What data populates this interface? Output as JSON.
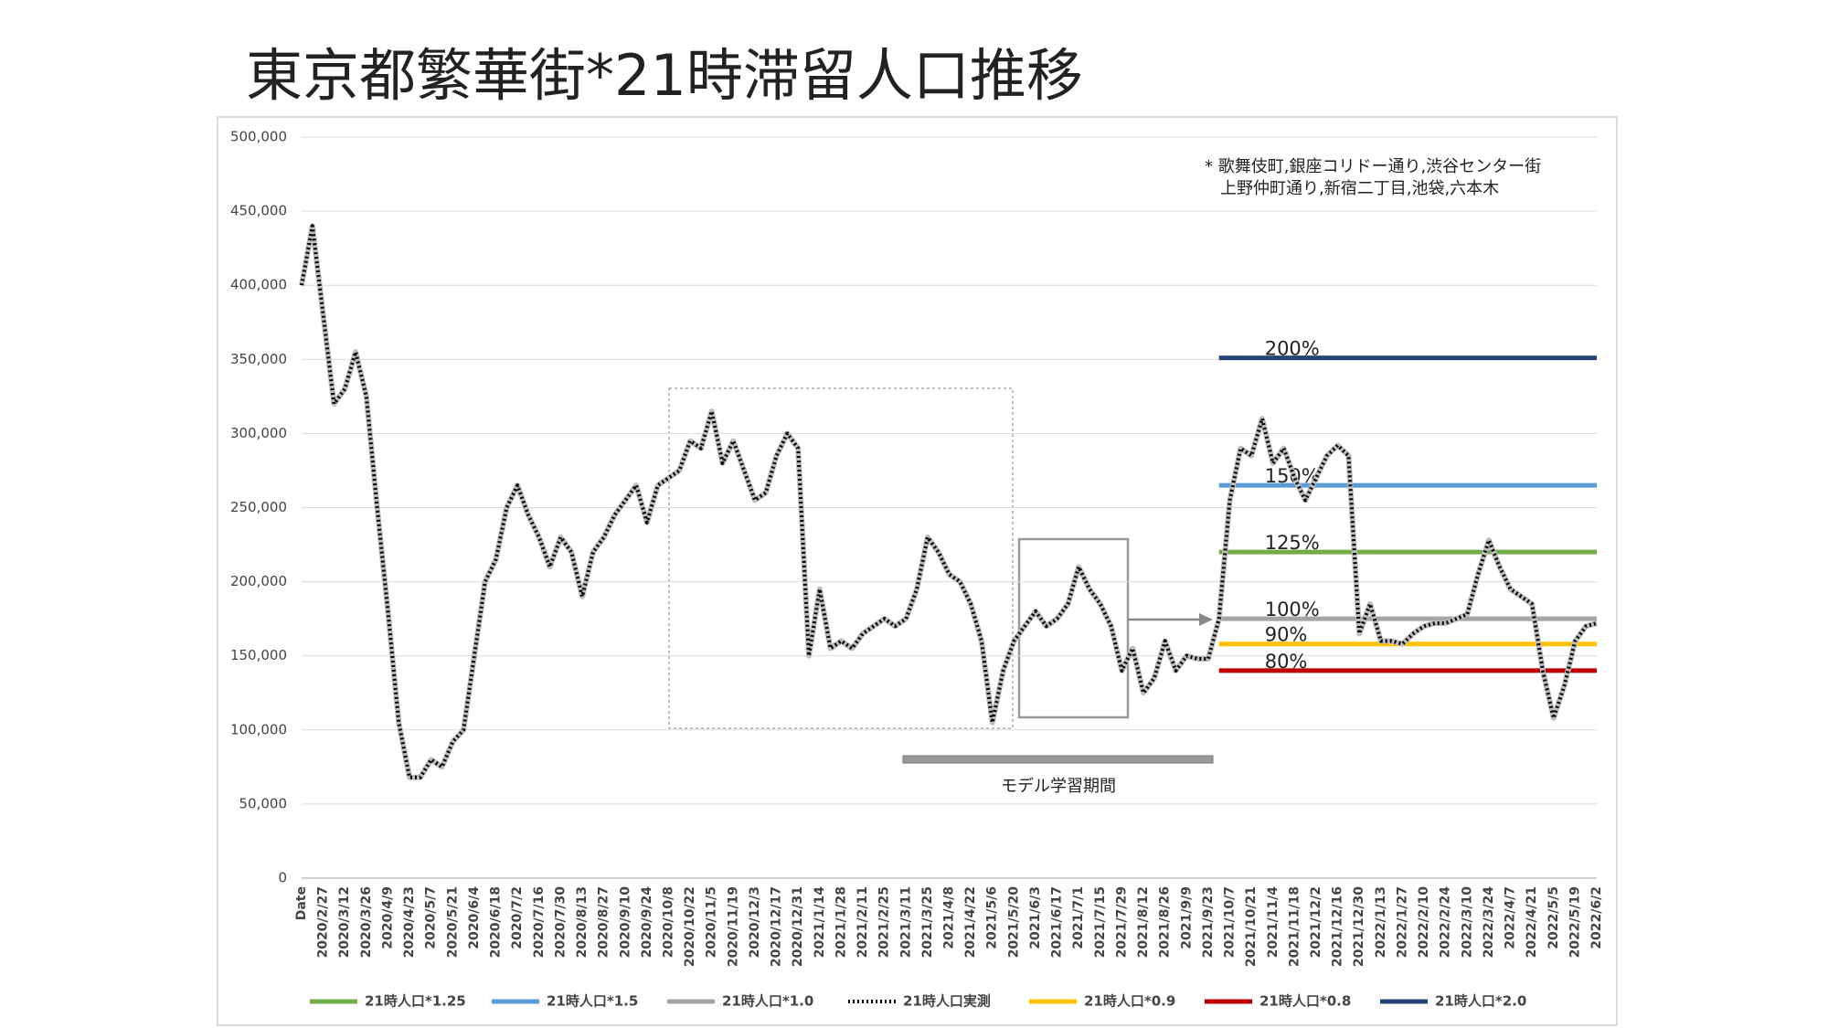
{
  "chart_data": {
    "type": "line",
    "title": "東京都繁華街*21時滞留人口推移",
    "note": [
      "* 歌舞伎町,銀座コリドー通り,渋谷センター街",
      "上野仲町通り,新宿二丁目,池袋,六本木"
    ],
    "annotation": "モデル学習期間",
    "categories": [
      "Date",
      null,
      "2020/2/27",
      null,
      "2020/3/12",
      null,
      "2020/3/26",
      null,
      "2020/4/9",
      null,
      "2020/4/23",
      null,
      "2020/5/7",
      null,
      "2020/5/21",
      null,
      "2020/6/4",
      null,
      "2020/6/18",
      null,
      "2020/7/2",
      null,
      "2020/7/16",
      null,
      "2020/7/30",
      null,
      "2020/8/13",
      null,
      "2020/8/27",
      null,
      "2020/9/10",
      null,
      "2020/9/24",
      null,
      "2020/10/8",
      null,
      "2020/10/22",
      null,
      "2020/11/5",
      null,
      "2020/11/19",
      null,
      "2020/12/3",
      null,
      "2020/12/17",
      null,
      "2020/12/31",
      null,
      "2021/1/14",
      null,
      "2021/1/28",
      null,
      "2021/2/11",
      null,
      "2021/2/25",
      null,
      "2021/3/11",
      null,
      "2021/3/25",
      null,
      "2021/4/8",
      null,
      "2021/4/22",
      null,
      "2021/5/6",
      null,
      "2021/5/20",
      null,
      "2021/6/3",
      null,
      "2021/6/17",
      null,
      "2021/7/1",
      null,
      "2021/7/15",
      null,
      "2021/7/29",
      null,
      "2021/8/12",
      null,
      "2021/8/26",
      null,
      "2021/9/9",
      null,
      "2021/9/23",
      null,
      "2021/10/7",
      null,
      "2021/10/21",
      null,
      "2021/11/4",
      null,
      "2021/11/18",
      null,
      "2021/12/2",
      null,
      "2021/12/16",
      null,
      "2021/12/30",
      null,
      "2022/1/13",
      null,
      "2022/1/27",
      null,
      "2022/2/10",
      null,
      "2022/2/24",
      null,
      "2022/3/10",
      null,
      "2022/3/24",
      null,
      "2022/4/7",
      null,
      "2022/4/21",
      null,
      "2022/5/5",
      null,
      "2022/5/19",
      null,
      "2022/6/2"
    ],
    "ylim": [
      0,
      500000
    ],
    "yticks": [
      0,
      {
        "value": 50000,
        "label": "50,000"
      },
      {
        "value": 100000,
        "label": "100,000"
      },
      {
        "value": 150000,
        "label": "150,000"
      },
      {
        "value": 200000,
        "label": "200,000"
      },
      {
        "value": 250000,
        "label": "250,000"
      },
      {
        "value": 300000,
        "label": "300,000"
      },
      {
        "value": 350000,
        "label": "350,000"
      },
      {
        "value": 400000,
        "label": "400,000"
      },
      {
        "value": 450000,
        "label": "450,000"
      },
      {
        "value": 500000,
        "label": "500,000"
      }
    ],
    "grid": true,
    "legend": "bottom",
    "series": [
      {
        "name": "21時人口*1.25",
        "color": "#70ad47",
        "annotation": "125%",
        "values": [
          null,
          null,
          null,
          null,
          null,
          null,
          null,
          null,
          null,
          null,
          null,
          null,
          null,
          null,
          null,
          null,
          null,
          null,
          null,
          null,
          null,
          null,
          null,
          null,
          null,
          null,
          null,
          null,
          null,
          null,
          null,
          null,
          null,
          null,
          null,
          null,
          null,
          null,
          null,
          null,
          null,
          null,
          null,
          null,
          null,
          null,
          null,
          null,
          null,
          null,
          null,
          null,
          null,
          null,
          null,
          null,
          null,
          null,
          null,
          null,
          null,
          null,
          null,
          null,
          null,
          null,
          null,
          null,
          null,
          null,
          null,
          null,
          null,
          null,
          null,
          null,
          null,
          null,
          null,
          null,
          null,
          null,
          null,
          null,
          null,
          220000,
          220000,
          220000,
          220000,
          220000,
          220000,
          220000,
          220000,
          220000,
          220000,
          220000,
          220000,
          220000,
          220000,
          220000,
          220000,
          220000,
          220000,
          220000,
          220000,
          220000,
          220000,
          220000,
          220000,
          220000,
          220000,
          220000,
          220000,
          220000,
          220000,
          220000,
          220000,
          220000,
          220000,
          220000,
          220000
        ]
      },
      {
        "name": "21時人口*1.5",
        "color": "#5b9bd5",
        "annotation": "150%",
        "values": [
          null,
          null,
          null,
          null,
          null,
          null,
          null,
          null,
          null,
          null,
          null,
          null,
          null,
          null,
          null,
          null,
          null,
          null,
          null,
          null,
          null,
          null,
          null,
          null,
          null,
          null,
          null,
          null,
          null,
          null,
          null,
          null,
          null,
          null,
          null,
          null,
          null,
          null,
          null,
          null,
          null,
          null,
          null,
          null,
          null,
          null,
          null,
          null,
          null,
          null,
          null,
          null,
          null,
          null,
          null,
          null,
          null,
          null,
          null,
          null,
          null,
          null,
          null,
          null,
          null,
          null,
          null,
          null,
          null,
          null,
          null,
          null,
          null,
          null,
          null,
          null,
          null,
          null,
          null,
          null,
          null,
          null,
          null,
          null,
          null,
          265000,
          265000,
          265000,
          265000,
          265000,
          265000,
          265000,
          265000,
          265000,
          265000,
          265000,
          265000,
          265000,
          265000,
          265000,
          265000,
          265000,
          265000,
          265000,
          265000,
          265000,
          265000,
          265000,
          265000,
          265000,
          265000,
          265000,
          265000,
          265000,
          265000,
          265000,
          265000,
          265000,
          265000,
          265000,
          265000
        ]
      },
      {
        "name": "21時人口*1.0",
        "color": "#a5a5a5",
        "annotation": "100%",
        "values": [
          null,
          null,
          null,
          null,
          null,
          null,
          null,
          null,
          null,
          null,
          null,
          null,
          null,
          null,
          null,
          null,
          null,
          null,
          null,
          null,
          null,
          null,
          null,
          null,
          null,
          null,
          null,
          null,
          null,
          null,
          null,
          null,
          null,
          null,
          null,
          null,
          null,
          null,
          null,
          null,
          null,
          null,
          null,
          null,
          null,
          null,
          null,
          null,
          null,
          null,
          null,
          null,
          null,
          null,
          null,
          null,
          null,
          null,
          null,
          null,
          null,
          null,
          null,
          null,
          null,
          null,
          null,
          null,
          null,
          null,
          null,
          null,
          null,
          null,
          null,
          null,
          null,
          null,
          null,
          null,
          null,
          null,
          null,
          null,
          null,
          175000,
          175000,
          175000,
          175000,
          175000,
          175000,
          175000,
          175000,
          175000,
          175000,
          175000,
          175000,
          175000,
          175000,
          175000,
          175000,
          175000,
          175000,
          175000,
          175000,
          175000,
          175000,
          175000,
          175000,
          175000,
          175000,
          175000,
          175000,
          175000,
          175000,
          175000,
          175000,
          175000,
          175000,
          175000,
          175000
        ]
      },
      {
        "name": "21時人口実測",
        "color": "#000000",
        "dashed": true,
        "values": [
          400000,
          440000,
          380000,
          320000,
          330000,
          355000,
          325000,
          250000,
          180000,
          105000,
          68000,
          68000,
          80000,
          75000,
          92000,
          100000,
          150000,
          200000,
          215000,
          250000,
          265000,
          245000,
          230000,
          210000,
          230000,
          220000,
          190000,
          220000,
          230000,
          245000,
          255000,
          265000,
          240000,
          265000,
          270000,
          275000,
          295000,
          290000,
          315000,
          280000,
          295000,
          275000,
          255000,
          260000,
          285000,
          300000,
          290000,
          150000,
          195000,
          155000,
          160000,
          155000,
          165000,
          170000,
          175000,
          170000,
          175000,
          195000,
          230000,
          220000,
          205000,
          200000,
          185000,
          160000,
          105000,
          140000,
          160000,
          170000,
          180000,
          170000,
          175000,
          185000,
          210000,
          195000,
          185000,
          170000,
          140000,
          155000,
          125000,
          135000,
          160000,
          140000,
          150000,
          148000,
          148000,
          175000,
          255000,
          290000,
          285000,
          310000,
          280000,
          290000,
          270000,
          255000,
          270000,
          285000,
          292000,
          285000,
          165000,
          185000,
          160000,
          160000,
          158000,
          165000,
          170000,
          172000,
          172000,
          175000,
          178000,
          205000,
          228000,
          210000,
          195000,
          190000,
          185000,
          140000,
          108000,
          130000,
          160000,
          170000,
          172000
        ]
      },
      {
        "name": "21時人口*0.9",
        "color": "#ffc000",
        "annotation": "90%",
        "values": [
          null,
          null,
          null,
          null,
          null,
          null,
          null,
          null,
          null,
          null,
          null,
          null,
          null,
          null,
          null,
          null,
          null,
          null,
          null,
          null,
          null,
          null,
          null,
          null,
          null,
          null,
          null,
          null,
          null,
          null,
          null,
          null,
          null,
          null,
          null,
          null,
          null,
          null,
          null,
          null,
          null,
          null,
          null,
          null,
          null,
          null,
          null,
          null,
          null,
          null,
          null,
          null,
          null,
          null,
          null,
          null,
          null,
          null,
          null,
          null,
          null,
          null,
          null,
          null,
          null,
          null,
          null,
          null,
          null,
          null,
          null,
          null,
          null,
          null,
          null,
          null,
          null,
          null,
          null,
          null,
          null,
          null,
          null,
          null,
          null,
          158000,
          158000,
          158000,
          158000,
          158000,
          158000,
          158000,
          158000,
          158000,
          158000,
          158000,
          158000,
          158000,
          158000,
          158000,
          158000,
          158000,
          158000,
          158000,
          158000,
          158000,
          158000,
          158000,
          158000,
          158000,
          158000,
          158000,
          158000,
          158000,
          158000,
          158000,
          158000,
          158000,
          158000,
          158000,
          158000
        ]
      },
      {
        "name": "21時人口*0.8",
        "color": "#c00000",
        "annotation": "80%",
        "values": [
          null,
          null,
          null,
          null,
          null,
          null,
          null,
          null,
          null,
          null,
          null,
          null,
          null,
          null,
          null,
          null,
          null,
          null,
          null,
          null,
          null,
          null,
          null,
          null,
          null,
          null,
          null,
          null,
          null,
          null,
          null,
          null,
          null,
          null,
          null,
          null,
          null,
          null,
          null,
          null,
          null,
          null,
          null,
          null,
          null,
          null,
          null,
          null,
          null,
          null,
          null,
          null,
          null,
          null,
          null,
          null,
          null,
          null,
          null,
          null,
          null,
          null,
          null,
          null,
          null,
          null,
          null,
          null,
          null,
          null,
          null,
          null,
          null,
          null,
          null,
          null,
          null,
          null,
          null,
          null,
          null,
          null,
          null,
          null,
          null,
          140000,
          140000,
          140000,
          140000,
          140000,
          140000,
          140000,
          140000,
          140000,
          140000,
          140000,
          140000,
          140000,
          140000,
          140000,
          140000,
          140000,
          140000,
          140000,
          140000,
          140000,
          140000,
          140000,
          140000,
          140000,
          140000,
          140000,
          140000,
          140000,
          140000,
          140000,
          140000,
          140000,
          140000,
          140000,
          140000
        ]
      },
      {
        "name": "21時人口*2.0",
        "color": "#264478",
        "annotation": "200%",
        "values": [
          null,
          null,
          null,
          null,
          null,
          null,
          null,
          null,
          null,
          null,
          null,
          null,
          null,
          null,
          null,
          null,
          null,
          null,
          null,
          null,
          null,
          null,
          null,
          null,
          null,
          null,
          null,
          null,
          null,
          null,
          null,
          null,
          null,
          null,
          null,
          null,
          null,
          null,
          null,
          null,
          null,
          null,
          null,
          null,
          null,
          null,
          null,
          null,
          null,
          null,
          null,
          null,
          null,
          null,
          null,
          null,
          null,
          null,
          null,
          null,
          null,
          null,
          null,
          null,
          null,
          null,
          null,
          null,
          null,
          null,
          null,
          null,
          null,
          null,
          null,
          null,
          null,
          null,
          null,
          null,
          null,
          null,
          null,
          null,
          null,
          351000,
          351000,
          351000,
          351000,
          351000,
          351000,
          351000,
          351000,
          351000,
          351000,
          351000,
          351000,
          351000,
          351000,
          351000,
          351000,
          351000,
          351000,
          351000,
          351000,
          351000,
          351000,
          351000,
          351000,
          351000,
          351000,
          351000,
          351000,
          351000,
          351000,
          351000,
          351000,
          351000,
          351000,
          351000,
          351000
        ]
      }
    ]
  }
}
